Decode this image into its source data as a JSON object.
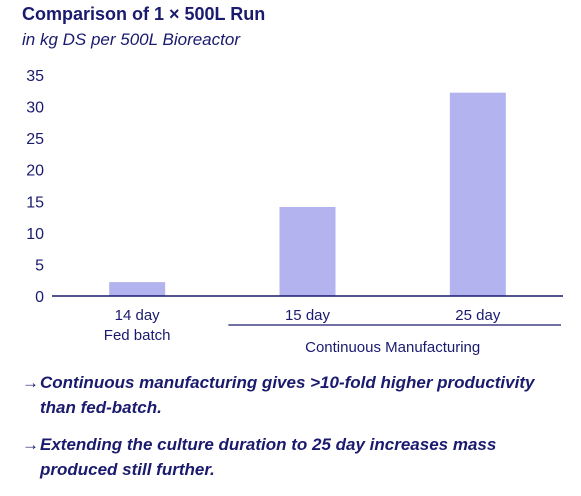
{
  "chart_data": {
    "type": "bar",
    "title": "Comparison of 1 × 500L Run",
    "subtitle": "in kg DS per 500L Bioreactor",
    "categories": [
      "14 day",
      "15 day",
      "25 day"
    ],
    "values": [
      2.2,
      14.1,
      32.2
    ],
    "ylim": [
      0,
      35
    ],
    "yticks": [
      0,
      5,
      10,
      15,
      20,
      25,
      30,
      35
    ],
    "groups": [
      {
        "label": "Fed batch",
        "categories": [
          "14 day"
        ]
      },
      {
        "label": "Continuous Manufacturing",
        "categories": [
          "15 day",
          "25 day"
        ]
      }
    ],
    "bar_color": "#b3b3ef",
    "text_color": "#1a1a6e",
    "grid": false,
    "legend": "none"
  },
  "notes": [
    {
      "arrow": "→",
      "text": "Continuous manufacturing gives >10-fold higher productivity than fed-batch."
    },
    {
      "arrow": "→",
      "text": "Extending the culture duration to 25 day increases mass produced still further."
    }
  ]
}
